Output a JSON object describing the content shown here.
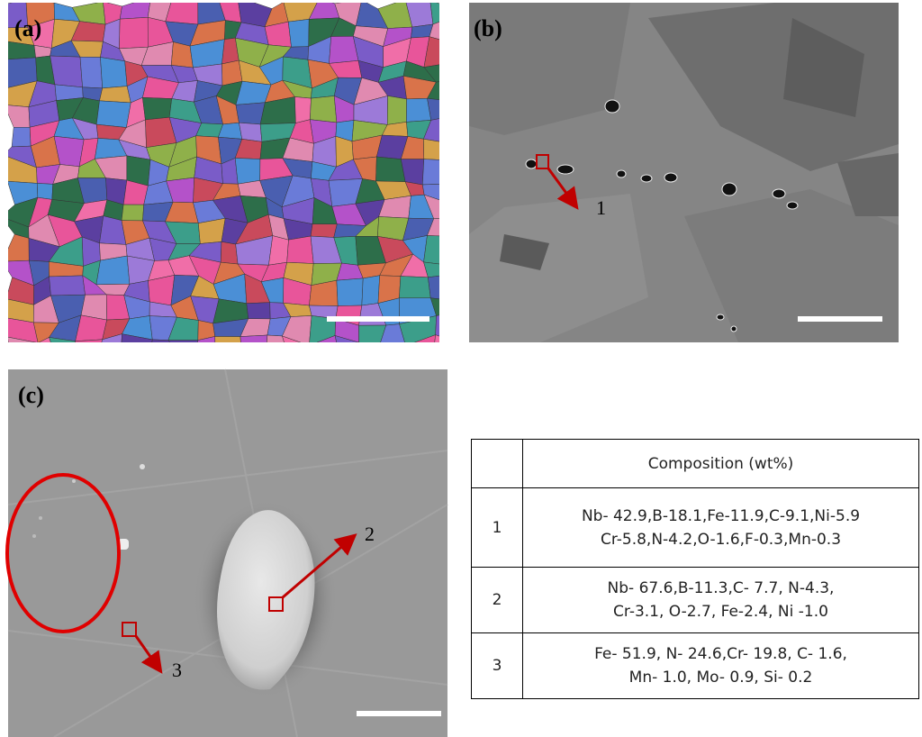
{
  "panels": [
    {
      "label": "(a)"
    },
    {
      "label": "(b)",
      "markers": [
        "1"
      ]
    },
    {
      "label": "(c)",
      "markers": [
        "2",
        "3"
      ]
    }
  ],
  "table": {
    "header": "Composition (wt%)",
    "rows": [
      {
        "id": "1",
        "lines": [
          "Nb- 42.9,B-18.1,Fe-11.9,C-9.1,Ni-5.9",
          "Cr-5.8,N-4.2,O-1.6,F-0.3,Mn-0.3"
        ]
      },
      {
        "id": "2",
        "lines": [
          "Nb- 67.6,B-11.3,C- 7.7, N-4.3,",
          "Cr-3.1, O-2.7, Fe-2.4, Ni -1.0"
        ]
      },
      {
        "id": "3",
        "lines": [
          "Fe- 51.9, N- 24.6,Cr- 19.8, C- 1.6,",
          "Mn- 1.0, Mo- 0.9, Si- 0.2"
        ]
      }
    ]
  }
}
